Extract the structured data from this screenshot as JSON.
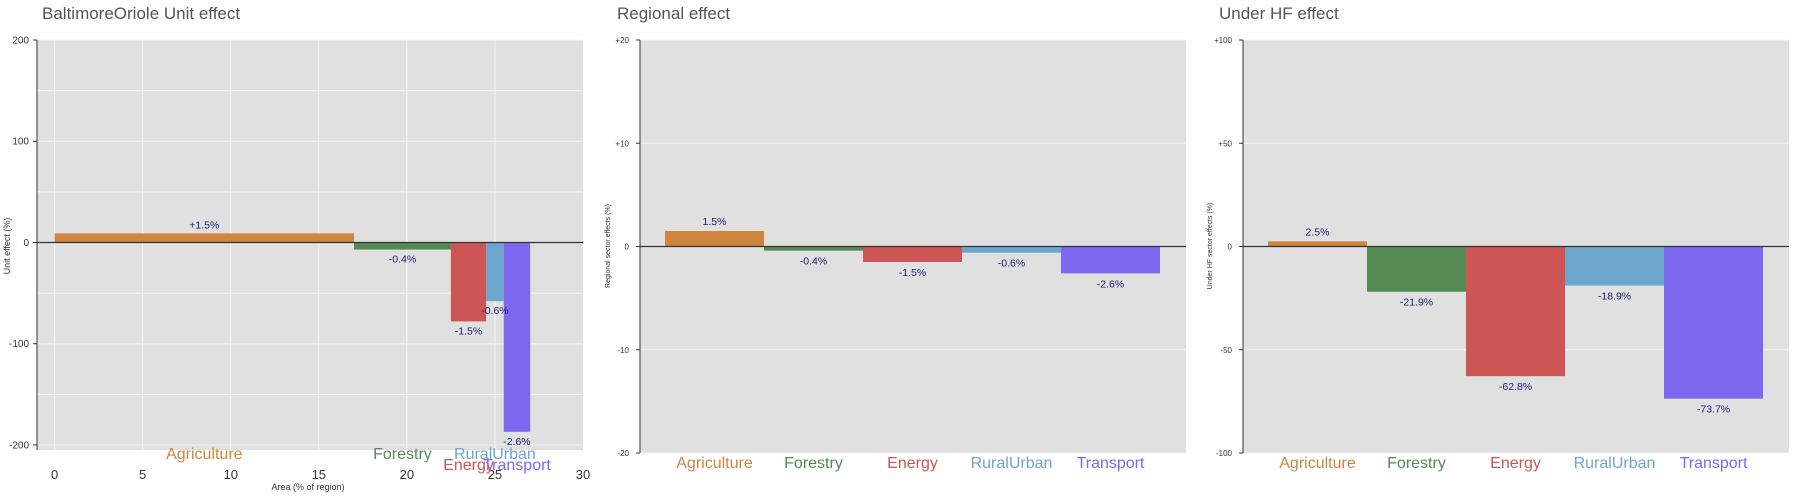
{
  "colors": {
    "Agriculture": "#CD853F",
    "Forestry": "#548B54",
    "Energy": "#CD5555",
    "RuralUrban": "#6CA6CD",
    "Transport": "#7B68EE",
    "panel_bg": "#E0E0E0",
    "grid": "#F5F5F5",
    "label_text": "#1a1a6e"
  },
  "chart_data": [
    {
      "type": "bar",
      "variant": "variable-width",
      "title": "BaltimoreOriole Unit effect",
      "xlabel": "Area (% of region)",
      "ylabel": "Unit effect (%)",
      "xlim": [
        -1,
        30
      ],
      "ylim": [
        -205,
        200
      ],
      "xticks": [
        0,
        5,
        10,
        15,
        20,
        25,
        30
      ],
      "xtick_labels": [
        "0",
        "5",
        "10",
        "15",
        "20",
        "25",
        "30"
      ],
      "yticks": [
        200,
        100,
        0,
        -100,
        -200
      ],
      "ytick_labels": [
        "200",
        "100",
        "0",
        "-100",
        "-200"
      ],
      "grid": true,
      "bars": [
        {
          "category": "Agriculture",
          "x_start": 0,
          "x_end": 17,
          "value": 9,
          "label": "+1.5%"
        },
        {
          "category": "Forestry",
          "x_start": 17,
          "x_end": 22.5,
          "value": -7,
          "label": "-0.4%"
        },
        {
          "category": "Energy",
          "x_start": 22.5,
          "x_end": 24.5,
          "value": -78,
          "label": "-1.5%"
        },
        {
          "category": "RuralUrban",
          "x_start": 24.5,
          "x_end": 25.5,
          "value": -58,
          "label": "-0.6%"
        },
        {
          "category": "Transport",
          "x_start": 25.5,
          "x_end": 27,
          "value": -187,
          "label": "-2.6%"
        }
      ],
      "category_labels": [
        "Agriculture",
        "Forestry",
        "Energy",
        "RuralUrban",
        "Transport"
      ]
    },
    {
      "type": "bar",
      "title": "Regional effect",
      "xlabel": "",
      "ylabel": "Regional sector effects (%)",
      "ylim": [
        -20,
        20
      ],
      "yticks": [
        20,
        10,
        0,
        -10,
        -20
      ],
      "ytick_labels": [
        "+20",
        "+10",
        "0",
        "-10",
        "-20"
      ],
      "grid": true,
      "categories": [
        "Agriculture",
        "Forestry",
        "Energy",
        "RuralUrban",
        "Transport"
      ],
      "values": [
        1.5,
        -0.4,
        -1.5,
        -0.6,
        -2.6
      ],
      "labels": [
        "1.5%",
        "-0.4%",
        "-1.5%",
        "-0.6%",
        "-2.6%"
      ]
    },
    {
      "type": "bar",
      "title": "Under HF effect",
      "xlabel": "",
      "ylabel": "Under HF sector effects (%)",
      "ylim": [
        -100,
        100
      ],
      "yticks": [
        100,
        50,
        0,
        -50,
        -100
      ],
      "ytick_labels": [
        "+100",
        "+50",
        "0",
        "-50",
        "-100"
      ],
      "grid": true,
      "categories": [
        "Agriculture",
        "Forestry",
        "Energy",
        "RuralUrban",
        "Transport"
      ],
      "values": [
        2.5,
        -21.9,
        -62.8,
        -18.9,
        -73.7
      ],
      "labels": [
        "2.5%",
        "-21.9%",
        "-62.8%",
        "-18.9%",
        "-73.7%"
      ]
    }
  ]
}
